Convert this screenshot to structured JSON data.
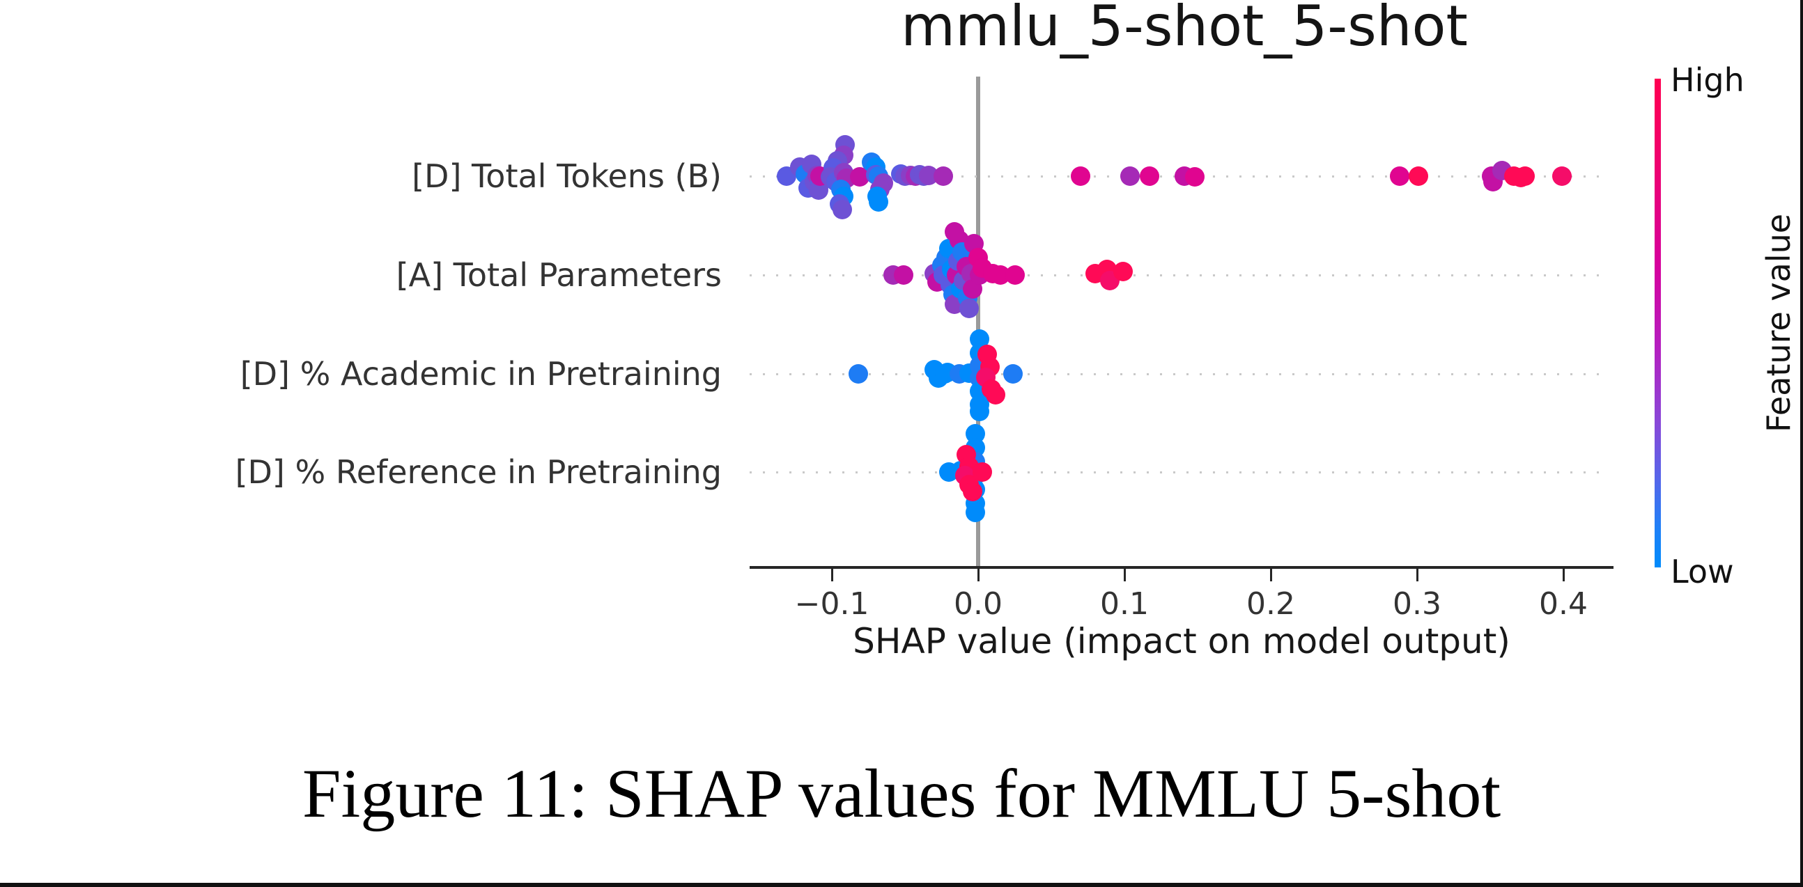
{
  "title": "mmlu_5-shot_5-shot",
  "caption": "Figure 11: SHAP values for MMLU 5-shot",
  "colorbar": {
    "high_label": "High",
    "low_label": "Low",
    "axis_label": "Feature value",
    "high_color": "#ff0051",
    "low_color": "#008bfb"
  },
  "chart_data": {
    "type": "scatter",
    "title": "mmlu_5-shot_5-shot",
    "xlabel": "SHAP value (impact on model output)",
    "xlim": [
      -0.156,
      0.434
    ],
    "grid": "dotted-horizontal-rows",
    "legend_position": "right-colorbar",
    "xticks": [
      {
        "v": -0.1,
        "label": "−0.1"
      },
      {
        "v": 0.0,
        "label": "0.0"
      },
      {
        "v": 0.1,
        "label": "0.1"
      },
      {
        "v": 0.2,
        "label": "0.2"
      },
      {
        "v": 0.3,
        "label": "0.3"
      },
      {
        "v": 0.4,
        "label": "0.4"
      }
    ],
    "features": [
      "[D] Total Tokens (B)",
      "[A] Total Parameters",
      "[D] % Academic in Pretraining",
      "[D] % Reference in Pretraining"
    ],
    "palette": {
      "b0": "#008bfb",
      "b1": "#1e7cf4",
      "v0": "#5a5ae2",
      "v1": "#6e51d4",
      "p0": "#8a3fc6",
      "p1": "#a52ab6",
      "m0": "#c311a4",
      "m1": "#e00590",
      "r0": "#f50d69",
      "r1": "#ff0a56"
    },
    "rows": [
      {
        "feature": "[D] Total Tokens (B)",
        "points": [
          [
            -0.131,
            0,
            "v0"
          ],
          [
            -0.122,
            -13,
            "v1"
          ],
          [
            -0.118,
            -3,
            "b1"
          ],
          [
            -0.114,
            -17,
            "v1"
          ],
          [
            -0.116,
            17,
            "v0"
          ],
          [
            -0.112,
            8,
            "v1"
          ],
          [
            -0.11,
            -1,
            "p0"
          ],
          [
            -0.108,
            10,
            "v0"
          ],
          [
            -0.109,
            20,
            "v1"
          ],
          [
            -0.108,
            0,
            "m0"
          ],
          [
            -0.091,
            -45,
            "v1"
          ],
          [
            -0.092,
            -30,
            "p0"
          ],
          [
            -0.096,
            -22,
            "v1"
          ],
          [
            -0.099,
            -12,
            "v0"
          ],
          [
            -0.101,
            1,
            "v1"
          ],
          [
            -0.097,
            8,
            "v0"
          ],
          [
            -0.092,
            -5,
            "p0"
          ],
          [
            -0.09,
            3,
            "p1"
          ],
          [
            -0.094,
            19,
            "b1"
          ],
          [
            -0.092,
            29,
            "b0"
          ],
          [
            -0.095,
            40,
            "v0"
          ],
          [
            -0.093,
            48,
            "v1"
          ],
          [
            -0.081,
            1,
            "m0"
          ],
          [
            -0.073,
            -20,
            "b1"
          ],
          [
            -0.07,
            -13,
            "b0"
          ],
          [
            -0.07,
            -2,
            "v0"
          ],
          [
            -0.068,
            0,
            "b1"
          ],
          [
            -0.065,
            10,
            "p0"
          ],
          [
            -0.067,
            19,
            "p0"
          ],
          [
            -0.069,
            29,
            "b0"
          ],
          [
            -0.068,
            37,
            "b0"
          ],
          [
            -0.053,
            -3,
            "v0"
          ],
          [
            -0.05,
            0,
            "v1"
          ],
          [
            -0.046,
            -1,
            "p0"
          ],
          [
            -0.043,
            0,
            "p1"
          ],
          [
            -0.04,
            -2,
            "v1"
          ],
          [
            -0.037,
            0,
            "v1"
          ],
          [
            -0.034,
            -1,
            "p0"
          ],
          [
            -0.024,
            0,
            "p1"
          ],
          [
            0.07,
            0,
            "m1"
          ],
          [
            0.104,
            0,
            "p1"
          ],
          [
            0.117,
            0,
            "m1"
          ],
          [
            0.141,
            0,
            "m0"
          ],
          [
            0.148,
            1,
            "m1"
          ],
          [
            0.288,
            0,
            "m1"
          ],
          [
            0.301,
            0,
            "r1"
          ],
          [
            0.351,
            0,
            "m0"
          ],
          [
            0.352,
            8,
            "m0"
          ],
          [
            0.358,
            -8,
            "p1"
          ],
          [
            0.366,
            0,
            "r1"
          ],
          [
            0.371,
            2,
            "r1"
          ],
          [
            0.374,
            0,
            "r1"
          ],
          [
            0.399,
            0,
            "r0"
          ]
        ]
      },
      {
        "feature": "[A] Total Parameters",
        "points": [
          [
            -0.058,
            0,
            "p1"
          ],
          [
            -0.051,
            0,
            "m0"
          ],
          [
            -0.03,
            -2,
            "p0"
          ],
          [
            -0.028,
            10,
            "m0"
          ],
          [
            -0.025,
            -14,
            "b1"
          ],
          [
            -0.024,
            0,
            "v0"
          ],
          [
            -0.022,
            -25,
            "b1"
          ],
          [
            -0.02,
            -38,
            "b0"
          ],
          [
            -0.019,
            14,
            "v0"
          ],
          [
            -0.018,
            -8,
            "b0"
          ],
          [
            -0.017,
            28,
            "b1"
          ],
          [
            -0.016,
            42,
            "p0"
          ],
          [
            -0.015,
            0,
            "m0"
          ],
          [
            -0.014,
            -20,
            "v0"
          ],
          [
            -0.013,
            -50,
            "m0"
          ],
          [
            -0.012,
            20,
            "b0"
          ],
          [
            -0.011,
            -33,
            "b1"
          ],
          [
            -0.01,
            8,
            "v1"
          ],
          [
            -0.008,
            -12,
            "m0"
          ],
          [
            -0.007,
            33,
            "b1"
          ],
          [
            -0.006,
            48,
            "v1"
          ],
          [
            -0.005,
            -2,
            "p1"
          ],
          [
            -0.004,
            20,
            "m0"
          ],
          [
            -0.016,
            -62,
            "m0"
          ],
          [
            -0.003,
            -45,
            "m0"
          ],
          [
            0.0,
            -25,
            "m1"
          ],
          [
            0.001,
            0,
            "m0"
          ],
          [
            0.003,
            -10,
            "m1"
          ],
          [
            0.01,
            -2,
            "m1"
          ],
          [
            0.015,
            0,
            "m1"
          ],
          [
            0.025,
            0,
            "m1"
          ],
          [
            0.08,
            -2,
            "r1"
          ],
          [
            0.088,
            -8,
            "r1"
          ],
          [
            0.09,
            8,
            "r0"
          ],
          [
            0.099,
            -5,
            "r1"
          ]
        ]
      },
      {
        "feature": "[D] % Academic in Pretraining",
        "points": [
          [
            -0.082,
            0,
            "b1"
          ],
          [
            -0.03,
            -6,
            "b0"
          ],
          [
            -0.027,
            6,
            "b0"
          ],
          [
            -0.023,
            0,
            "b0"
          ],
          [
            -0.021,
            -2,
            "b0"
          ],
          [
            -0.013,
            0,
            "b1"
          ],
          [
            -0.006,
            -1,
            "b0"
          ],
          [
            0.001,
            -50,
            "b0"
          ],
          [
            0.001,
            -30,
            "b0"
          ],
          [
            0.001,
            -12,
            "b1"
          ],
          [
            0.001,
            6,
            "b1"
          ],
          [
            0.001,
            25,
            "b0"
          ],
          [
            0.001,
            44,
            "b0"
          ],
          [
            0.001,
            54,
            "b0"
          ],
          [
            0.006,
            -28,
            "r1"
          ],
          [
            0.008,
            -10,
            "r1"
          ],
          [
            0.005,
            5,
            "r0"
          ],
          [
            0.009,
            22,
            "r1"
          ],
          [
            0.012,
            30,
            "r1"
          ],
          [
            0.024,
            0,
            "b1"
          ]
        ]
      },
      {
        "feature": "[D] % Reference in Pretraining",
        "points": [
          [
            -0.02,
            0,
            "b0"
          ],
          [
            -0.012,
            -2,
            "b0"
          ],
          [
            -0.002,
            -55,
            "b0"
          ],
          [
            -0.002,
            -35,
            "b0"
          ],
          [
            -0.002,
            -15,
            "b1"
          ],
          [
            -0.002,
            5,
            "b0"
          ],
          [
            -0.002,
            25,
            "b0"
          ],
          [
            -0.002,
            45,
            "b0"
          ],
          [
            -0.002,
            58,
            "b0"
          ],
          [
            -0.008,
            -25,
            "r1"
          ],
          [
            -0.006,
            -8,
            "r1"
          ],
          [
            -0.009,
            5,
            "r0"
          ],
          [
            -0.006,
            18,
            "r1"
          ],
          [
            -0.004,
            28,
            "r1"
          ],
          [
            0.003,
            0,
            "r1"
          ]
        ]
      }
    ]
  }
}
